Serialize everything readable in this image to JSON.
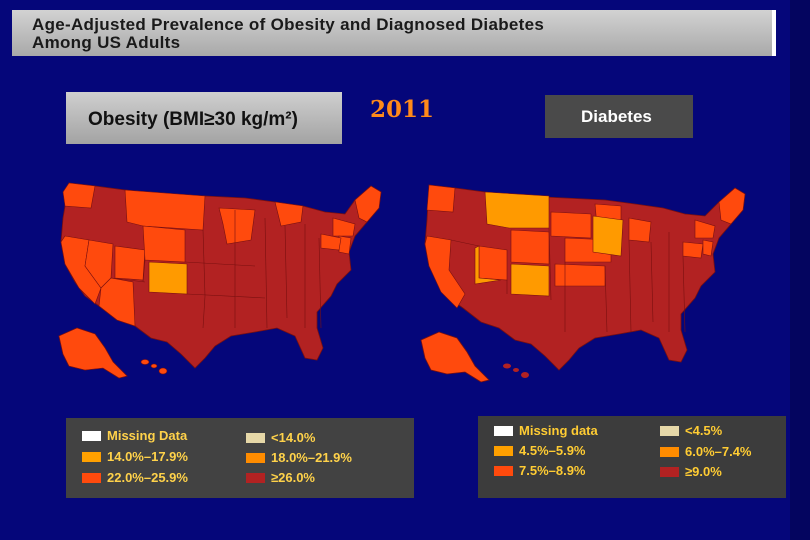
{
  "title": {
    "line1": "Age-Adjusted Prevalence of Obesity and Diagnosed Diabetes",
    "line2": "Among US Adults"
  },
  "year": "2011",
  "obesity_panel": {
    "label": "Obesity (BMI≥30 kg/m²)",
    "legend": [
      {
        "label": "Missing Data",
        "color": "#ffffff"
      },
      {
        "label": "<14.0%",
        "color": "#e6d8a8"
      },
      {
        "label": "14.0%–17.9%",
        "color": "#ffa000"
      },
      {
        "label": "18.0%–21.9%",
        "color": "#ff8c00"
      },
      {
        "label": "22.0%–25.9%",
        "color": "#ff4a0d"
      },
      {
        "label": "≥26.0%",
        "color": "#b22222"
      }
    ]
  },
  "diabetes_panel": {
    "label": "Diabetes",
    "legend": [
      {
        "label": "Missing data",
        "color": "#ffffff"
      },
      {
        "label": "<4.5%",
        "color": "#e6d8a8"
      },
      {
        "label": "4.5%–5.9%",
        "color": "#ffa000"
      },
      {
        "label": "6.0%–7.4%",
        "color": "#ff8c00"
      },
      {
        "label": "7.5%–8.9%",
        "color": "#ff4a0d"
      },
      {
        "label": "≥9.0%",
        "color": "#b22222"
      }
    ]
  },
  "colors": {
    "background": "#05067a",
    "legend_text": "#ffd24a",
    "legend_text_right": "#ffcc33"
  }
}
